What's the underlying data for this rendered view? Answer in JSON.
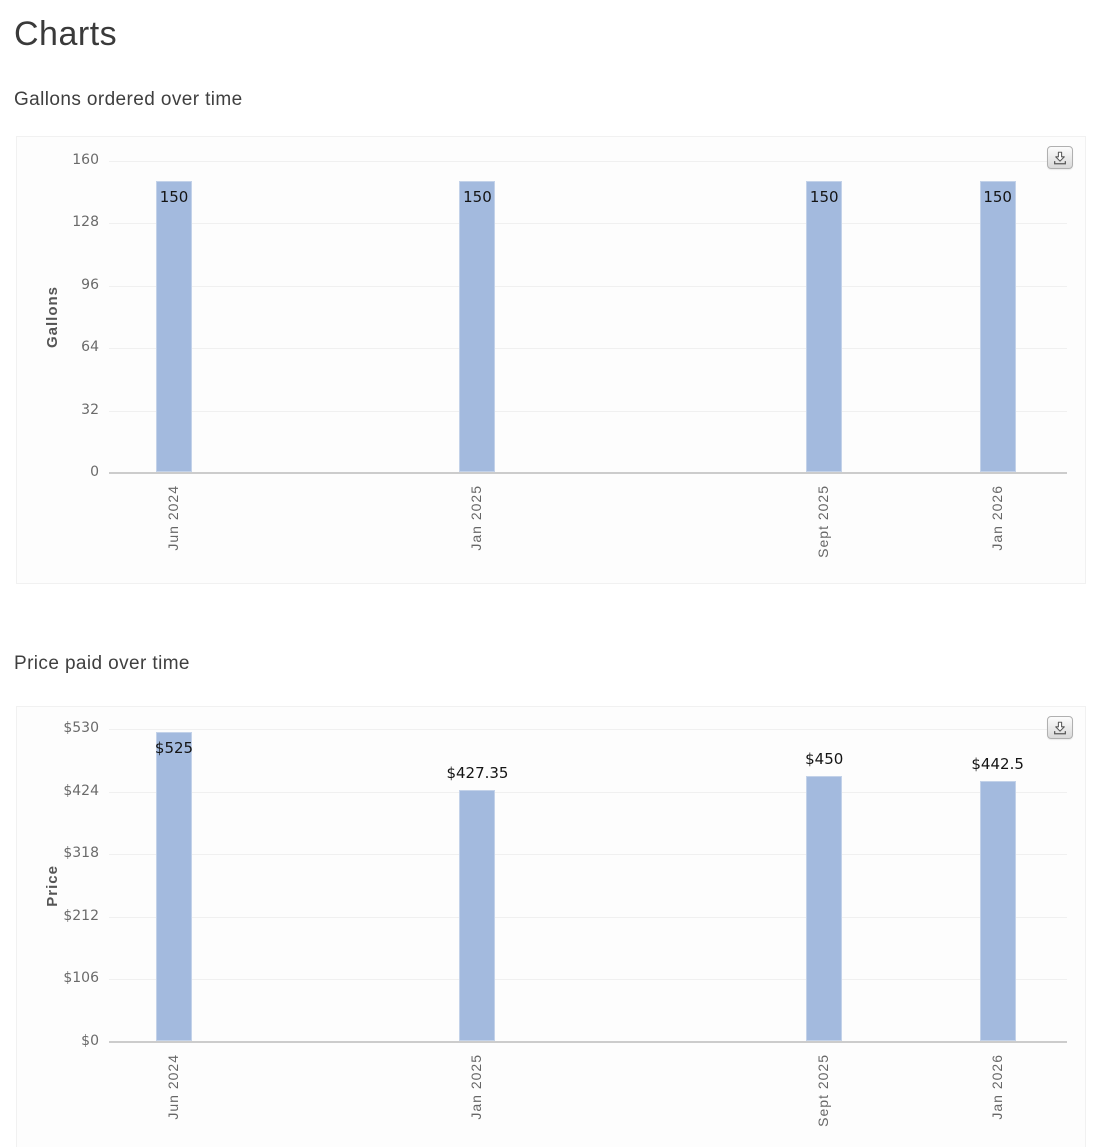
{
  "page": {
    "title": "Charts"
  },
  "theme": {
    "bar_color": "#a3bade",
    "grid_color": "#f0f0f0",
    "axis_color": "#cccccc",
    "tick_text_color": "#6a6a6a",
    "value_label_color": "#141414"
  },
  "chart_data": [
    {
      "type": "bar",
      "title": "Gallons ordered over time",
      "xlabel": "",
      "ylabel": "Gallons",
      "categories": [
        "Jun 2024",
        "Jan 2025",
        "Sept 2025",
        "Jan 2026"
      ],
      "values": [
        150,
        150,
        150,
        150
      ],
      "value_labels": [
        "150",
        "150",
        "150",
        "150"
      ],
      "label_inside": [
        true,
        true,
        true,
        true
      ],
      "yticks": [
        0,
        32,
        64,
        96,
        128,
        160
      ],
      "ytick_labels": [
        "0",
        "32",
        "64",
        "96",
        "128",
        "160"
      ],
      "ylim": [
        0,
        160
      ],
      "x_months": [
        0,
        7,
        15,
        19
      ],
      "x_domain_months": [
        -1.5,
        20.6
      ],
      "grid": true,
      "legend": "none",
      "bar_color": "#a3bade",
      "toolbar_icons": [
        "download-icon"
      ]
    },
    {
      "type": "bar",
      "title": "Price paid over time",
      "xlabel": "",
      "ylabel": "Price",
      "categories": [
        "Jun 2024",
        "Jan 2025",
        "Sept 2025",
        "Jan 2026"
      ],
      "values": [
        525,
        427.35,
        450,
        442.5
      ],
      "value_labels": [
        "$525",
        "$427.35",
        "$450",
        "$442.5"
      ],
      "label_inside": [
        true,
        false,
        false,
        false
      ],
      "yticks": [
        0,
        106,
        212,
        318,
        424,
        530
      ],
      "ytick_labels": [
        "$0",
        "$106",
        "$212",
        "$318",
        "$424",
        "$530"
      ],
      "ylim": [
        0,
        530
      ],
      "x_months": [
        0,
        7,
        15,
        19
      ],
      "x_domain_months": [
        -1.5,
        20.6
      ],
      "grid": true,
      "legend": "none",
      "bar_color": "#a3bade",
      "toolbar_icons": [
        "download-icon"
      ]
    }
  ]
}
